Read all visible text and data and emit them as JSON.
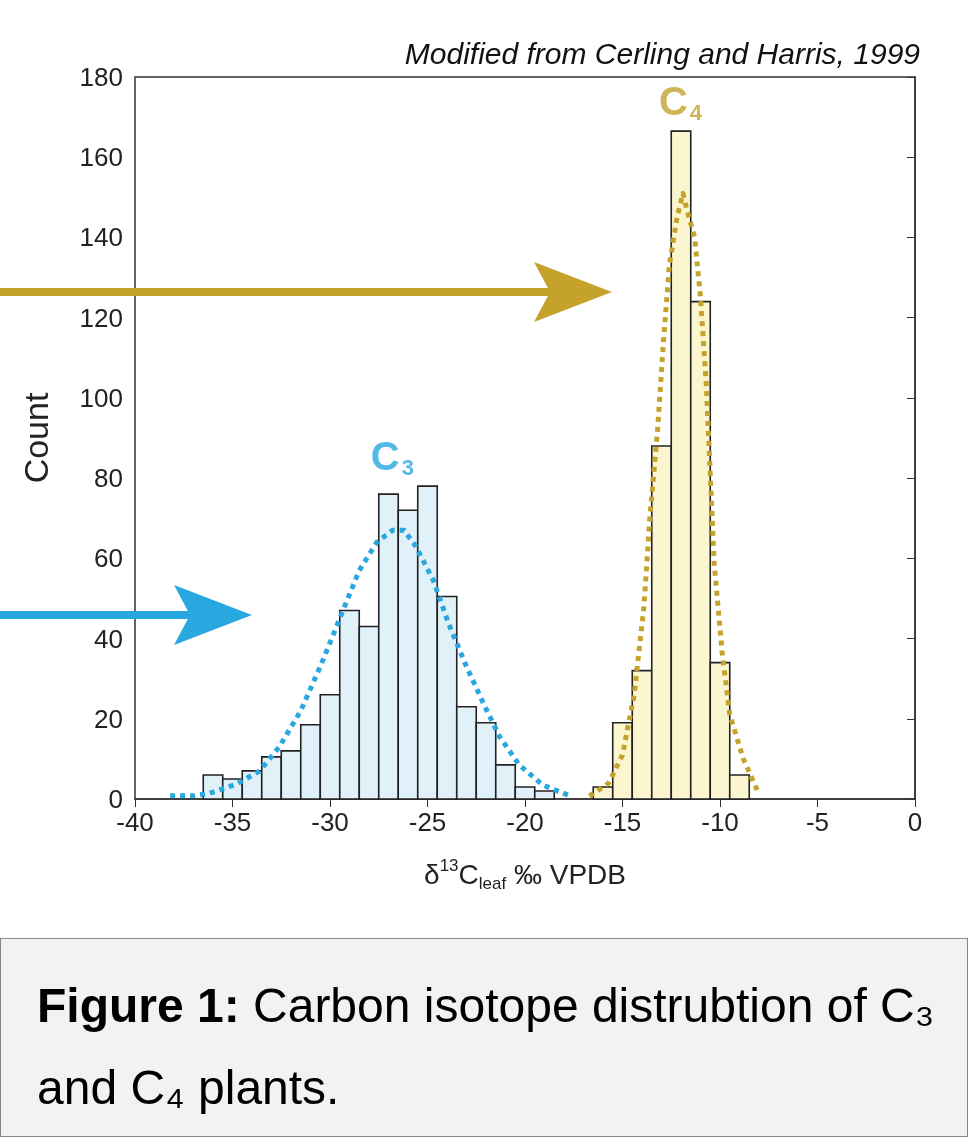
{
  "chart_data": {
    "type": "histogram",
    "xlabel": "δ$^{13}$C$_{leaf}$ ‰ VPDB",
    "ylabel": "Count",
    "xlim": [
      -40,
      0
    ],
    "xticks": [
      -40,
      -35,
      -30,
      -25,
      -20,
      -15,
      -10,
      -5,
      0
    ],
    "ylim": [
      0,
      180
    ],
    "yticks": [
      0,
      20,
      40,
      60,
      80,
      100,
      120,
      140,
      160,
      180
    ],
    "grid": false,
    "series": [
      {
        "color": "#e0f1fa",
        "bins": [
          -36.5,
          -35.5,
          -34.5,
          -33.5,
          -32.5,
          -31.5,
          -30.5,
          -29.5,
          -28.5,
          -27.5,
          -26.5,
          -25.5,
          -24.5,
          -23.5,
          -22.5,
          -21.5,
          -20.5,
          -19.5,
          -18.5
        ],
        "values": [
          6,
          5,
          7,
          10.5,
          12,
          18.5,
          26,
          47,
          43,
          76,
          72,
          78,
          50.5,
          23,
          19,
          8.5,
          3,
          2
        ]
      },
      {
        "color": "#fbf6d0",
        "bins": [
          -16.5,
          -15.5,
          -14.5,
          -13.5,
          -12.5,
          -11.5,
          -10.5,
          -9.5,
          -8.5
        ],
        "values": [
          3,
          19,
          32,
          88,
          166.5,
          124,
          34,
          6
        ]
      },
      {
        "type": "line",
        "color": "#29a8e0",
        "line_style": "dotted",
        "marker": "none",
        "x": [
          -38.2,
          -37,
          -36.2,
          -34.8,
          -33.6,
          -32.6,
          -31.5,
          -30.5,
          -29.5,
          -28.5,
          -27.6,
          -26.8,
          -26.2,
          -25.6,
          -24.7,
          -23.9,
          -23,
          -22.1,
          -21.3,
          -20.3,
          -19.1,
          -17.7
        ],
        "values": [
          0.8,
          0.8,
          1.4,
          3.7,
          7,
          13,
          22,
          33,
          45,
          57,
          64,
          67,
          67,
          63,
          54.5,
          43.5,
          33,
          23.5,
          15.5,
          8.5,
          3.5,
          0.8
        ]
      },
      {
        "type": "line",
        "color": "#c4a22c",
        "line_style": "dotted",
        "marker": "none",
        "x": [
          -16.7,
          -15.7,
          -15,
          -14.4,
          -13.9,
          -13.6,
          -13.2,
          -12.9,
          -12.6,
          -12.2,
          -11.9,
          -11.7,
          -11.3,
          -11,
          -10.7,
          -10.5,
          -10.3,
          -9.9,
          -9.5,
          -8.8,
          -8
        ],
        "values": [
          0.7,
          4,
          11,
          26,
          48,
          70,
          92,
          114,
          133,
          145,
          151,
          147,
          140,
          125,
          103,
          81,
          59,
          37,
          21,
          10,
          1.2
        ]
      }
    ],
    "annotations": [
      "Modified from Cerling and Harris, 1999",
      "C$_{3}$",
      "C$_{4}$",
      "Figure 1:",
      "Carbon isotope distrubtion of C₃ and C₄ plants."
    ]
  }
}
